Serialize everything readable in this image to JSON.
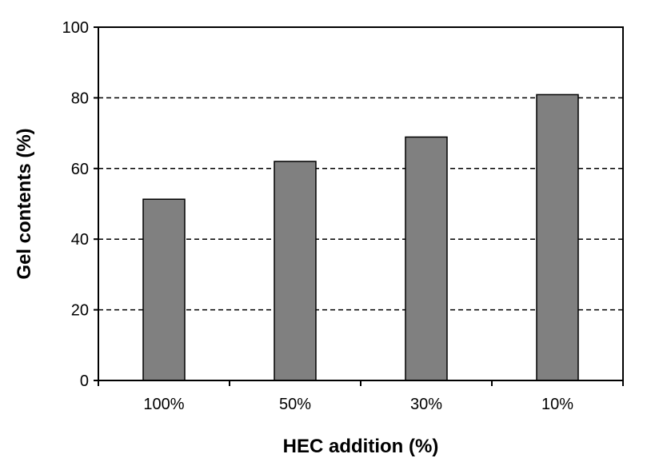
{
  "chart_data": {
    "type": "bar",
    "categories": [
      "100%",
      "50%",
      "30%",
      "10%"
    ],
    "values": [
      51.3,
      62,
      68.9,
      80.9
    ],
    "xlabel": "HEC addition (%)",
    "ylabel": "Gel contents (%)",
    "ylim": [
      0,
      100
    ],
    "yticks": [
      0,
      20,
      40,
      60,
      80,
      100
    ],
    "grid": "horizontal dashed",
    "legend": "none",
    "bar_color": "#808080"
  }
}
